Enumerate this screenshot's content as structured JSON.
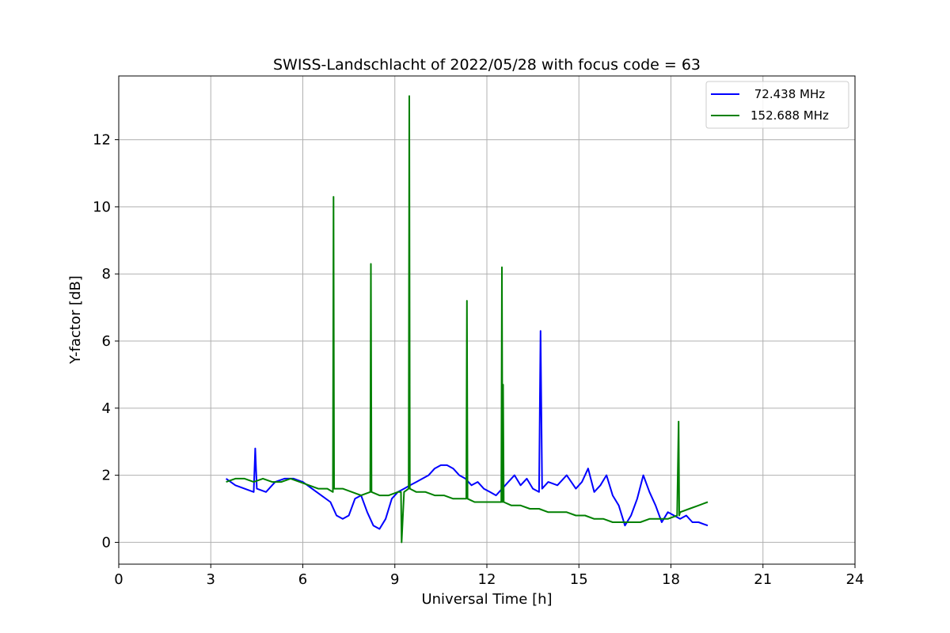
{
  "chart_data": {
    "type": "line",
    "title": "SWISS-Landschlacht of 2022/05/28 with focus code = 63",
    "xlabel": "Universal Time [h]",
    "ylabel": "Y-factor [dB]",
    "xlim": [
      0,
      24
    ],
    "ylim": [
      -0.65,
      13.9
    ],
    "xticks": [
      0,
      3,
      6,
      9,
      12,
      15,
      18,
      21,
      24
    ],
    "yticks": [
      0,
      2,
      4,
      6,
      8,
      10,
      12
    ],
    "grid": true,
    "legend_position": "top-right",
    "series": [
      {
        "name": " 72.438 MHz",
        "color": "#0000ff",
        "x": [
          3.5,
          3.8,
          4.1,
          4.4,
          4.45,
          4.5,
          4.8,
          5.1,
          5.4,
          5.7,
          6.0,
          6.3,
          6.6,
          6.9,
          7.1,
          7.3,
          7.5,
          7.7,
          7.9,
          8.1,
          8.3,
          8.5,
          8.7,
          8.9,
          9.1,
          9.3,
          9.5,
          9.7,
          9.9,
          10.1,
          10.3,
          10.5,
          10.7,
          10.9,
          11.1,
          11.3,
          11.5,
          11.7,
          11.9,
          12.1,
          12.3,
          12.5,
          12.7,
          12.9,
          13.1,
          13.3,
          13.5,
          13.7,
          13.75,
          13.8,
          14.0,
          14.3,
          14.6,
          14.9,
          15.1,
          15.3,
          15.5,
          15.7,
          15.9,
          16.1,
          16.3,
          16.5,
          16.7,
          16.9,
          17.1,
          17.3,
          17.5,
          17.7,
          17.9,
          18.1,
          18.3,
          18.5,
          18.7,
          18.9,
          19.2
        ],
        "y": [
          1.9,
          1.7,
          1.6,
          1.5,
          2.8,
          1.6,
          1.5,
          1.8,
          1.9,
          1.9,
          1.8,
          1.6,
          1.4,
          1.2,
          0.8,
          0.7,
          0.8,
          1.3,
          1.4,
          0.9,
          0.5,
          0.4,
          0.7,
          1.3,
          1.5,
          1.6,
          1.7,
          1.8,
          1.9,
          2.0,
          2.2,
          2.3,
          2.3,
          2.2,
          2.0,
          1.9,
          1.7,
          1.8,
          1.6,
          1.5,
          1.4,
          1.6,
          1.8,
          2.0,
          1.7,
          1.9,
          1.6,
          1.5,
          6.3,
          1.6,
          1.8,
          1.7,
          2.0,
          1.6,
          1.8,
          2.2,
          1.5,
          1.7,
          2.0,
          1.4,
          1.1,
          0.5,
          0.8,
          1.3,
          2.0,
          1.5,
          1.1,
          0.6,
          0.9,
          0.8,
          0.7,
          0.8,
          0.6,
          0.6,
          0.5
        ]
      },
      {
        "name": "152.688 MHz",
        "color": "#008000",
        "x": [
          3.5,
          3.8,
          4.1,
          4.4,
          4.7,
          5.0,
          5.3,
          5.6,
          5.9,
          6.2,
          6.5,
          6.8,
          6.98,
          7.0,
          7.02,
          7.3,
          7.6,
          7.9,
          8.2,
          8.22,
          8.24,
          8.5,
          8.8,
          9.1,
          9.2,
          9.22,
          9.3,
          9.45,
          9.47,
          9.49,
          9.7,
          10.0,
          10.3,
          10.6,
          10.9,
          11.2,
          11.33,
          11.35,
          11.37,
          11.6,
          11.9,
          12.2,
          12.47,
          12.49,
          12.51,
          12.53,
          12.55,
          12.8,
          13.1,
          13.4,
          13.7,
          14.0,
          14.3,
          14.6,
          14.9,
          15.2,
          15.5,
          15.8,
          16.1,
          16.4,
          16.7,
          17.0,
          17.3,
          17.6,
          17.9,
          18.2,
          18.25,
          18.27,
          18.3,
          18.6,
          18.9,
          19.2
        ],
        "y": [
          1.8,
          1.9,
          1.9,
          1.8,
          1.9,
          1.8,
          1.8,
          1.9,
          1.8,
          1.7,
          1.6,
          1.6,
          1.5,
          10.3,
          1.6,
          1.6,
          1.5,
          1.4,
          1.5,
          8.3,
          1.5,
          1.4,
          1.4,
          1.5,
          1.5,
          0.0,
          1.5,
          1.6,
          13.3,
          1.6,
          1.5,
          1.5,
          1.4,
          1.4,
          1.3,
          1.3,
          1.3,
          7.2,
          1.3,
          1.2,
          1.2,
          1.2,
          1.2,
          8.2,
          1.2,
          4.7,
          1.2,
          1.1,
          1.1,
          1.0,
          1.0,
          0.9,
          0.9,
          0.9,
          0.8,
          0.8,
          0.7,
          0.7,
          0.6,
          0.6,
          0.6,
          0.6,
          0.7,
          0.7,
          0.7,
          0.8,
          3.6,
          0.8,
          0.9,
          1.0,
          1.1,
          1.2
        ]
      }
    ]
  }
}
